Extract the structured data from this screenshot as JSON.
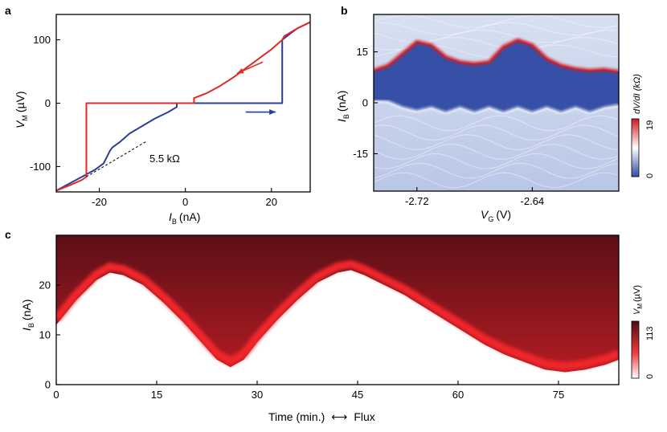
{
  "figure": {
    "panel_a_letter": "a",
    "panel_b_letter": "b",
    "panel_c_letter": "c"
  },
  "chart_data": [
    {
      "panel": "a",
      "type": "line",
      "xlabel_main": "I",
      "xlabel_sub": "B",
      "xlabel_unit": "(nA)",
      "ylabel_main": "V",
      "ylabel_sub": "M",
      "ylabel_unit": "(µV)",
      "xlim": [
        -30,
        29
      ],
      "ylim": [
        -140,
        140
      ],
      "xticks": [
        -20,
        0,
        20
      ],
      "yticks": [
        -100,
        0,
        100
      ],
      "annotation": "5.5 kΩ",
      "colors": {
        "up_sweep": "#2b3f96",
        "down_sweep": "#e02a27",
        "fit": "#000000"
      },
      "series": [
        {
          "direction": "up",
          "color": "#2b3f96",
          "x": [
            -30,
            -27,
            -24,
            -21,
            -19,
            -17.5,
            -17,
            -15,
            -13,
            -10,
            -7,
            -4,
            -2,
            -2,
            22.5,
            22.5,
            24,
            26,
            29
          ],
          "y": [
            -138,
            -127,
            -116,
            -105,
            -95,
            -75,
            -70,
            -60,
            -48,
            -36,
            -24,
            -14,
            -6,
            0,
            0,
            100,
            108,
            118,
            128
          ]
        },
        {
          "direction": "down",
          "color": "#e02a27",
          "x": [
            29,
            26,
            23,
            22.5,
            20,
            17,
            14,
            11,
            8,
            5,
            2,
            2,
            -23,
            -23,
            -24,
            -27,
            -30
          ],
          "y": [
            128,
            118,
            106,
            100,
            85,
            70,
            55,
            40,
            27,
            16,
            8,
            0,
            0,
            -116,
            -121,
            -130,
            -138
          ]
        },
        {
          "name": "fit",
          "dashed": true,
          "x": [
            -23,
            -9
          ],
          "y": [
            -116,
            -60
          ]
        }
      ],
      "arrows": [
        {
          "color": "#e02a27",
          "from": [
            18,
            65
          ],
          "to": [
            12,
            47
          ]
        },
        {
          "color": "#2b3f96",
          "from": [
            14,
            -14
          ],
          "to": [
            21,
            -14
          ]
        }
      ]
    },
    {
      "panel": "b",
      "type": "heatmap",
      "xlabel_main": "V",
      "xlabel_sub": "G",
      "xlabel_unit": "(V)",
      "ylabel_main": "I",
      "ylabel_sub": "B",
      "ylabel_unit": "(nA)",
      "xlim": [
        -2.75,
        -2.58
      ],
      "ylim": [
        -26,
        26
      ],
      "xticks": [
        "-2.72",
        "-2.64"
      ],
      "xtick_values": [
        -2.72,
        -2.64
      ],
      "yticks": [
        15,
        0,
        -15
      ],
      "colorbar_label": "dV/dI (kΩ)",
      "colorbar_min": "0",
      "colorbar_max": "19",
      "colors": {
        "low": "#2e4da3",
        "mid": "#ffffff",
        "high": "#d2191c"
      },
      "upper_switching_current": {
        "x": [
          -2.75,
          -2.74,
          -2.73,
          -2.72,
          -2.71,
          -2.7,
          -2.69,
          -2.68,
          -2.67,
          -2.66,
          -2.65,
          -2.64,
          -2.63,
          -2.62,
          -2.61,
          -2.6,
          -2.59,
          -2.58
        ],
        "y": [
          9.5,
          11,
          14.5,
          18,
          17,
          13.5,
          12,
          11.5,
          12,
          16.5,
          18.5,
          17,
          13,
          11,
          10,
          9.5,
          9.8,
          9.2
        ]
      },
      "lower_switching_current": {
        "x": [
          -2.75,
          -2.74,
          -2.73,
          -2.72,
          -2.71,
          -2.7,
          -2.69,
          -2.68,
          -2.67,
          -2.66,
          -2.65,
          -2.64,
          -2.63,
          -2.62,
          -2.61,
          -2.6,
          -2.59,
          -2.58
        ],
        "y": [
          0.5,
          0.3,
          -1.5,
          -2.5,
          -1.5,
          -3,
          -1.5,
          -3,
          -1.5,
          -3,
          -1.5,
          -3,
          -1.5,
          -3,
          -1.5,
          -3,
          -1.5,
          -0.8
        ]
      }
    },
    {
      "panel": "c",
      "type": "heatmap",
      "xlabel": "Time (min.)",
      "xlabel_arrow": "⟷",
      "xlabel_extra": "Flux",
      "ylabel_main": "I",
      "ylabel_sub": "B",
      "ylabel_unit": "(nA)",
      "xlim": [
        0,
        84
      ],
      "ylim": [
        0,
        30
      ],
      "xticks": [
        0,
        15,
        30,
        45,
        60,
        75
      ],
      "yticks": [
        0,
        10,
        20
      ],
      "colorbar_label_main": "V",
      "colorbar_label_sub": "M",
      "colorbar_label_unit": "(µV)",
      "colorbar_min": "0",
      "colorbar_max": "113",
      "colors": {
        "low": "#ffffff",
        "mid": "#e8262a",
        "high": "#5b0f18"
      },
      "switching_current": {
        "x": [
          0,
          3,
          6,
          8,
          10,
          13,
          16,
          19,
          22,
          24,
          26,
          28,
          30,
          33,
          36,
          39,
          42,
          44,
          46,
          49,
          52,
          55,
          58,
          61,
          64,
          67,
          70,
          73,
          76,
          79,
          82,
          84
        ],
        "y": [
          12,
          17,
          21,
          22.5,
          22,
          20,
          16.5,
          12.5,
          8,
          5,
          3.5,
          5,
          8.5,
          13,
          17,
          20.5,
          22.5,
          23,
          22,
          20,
          18,
          15.5,
          13,
          10.5,
          8,
          6,
          4.5,
          3,
          2.5,
          3,
          4,
          5
        ]
      }
    }
  ]
}
